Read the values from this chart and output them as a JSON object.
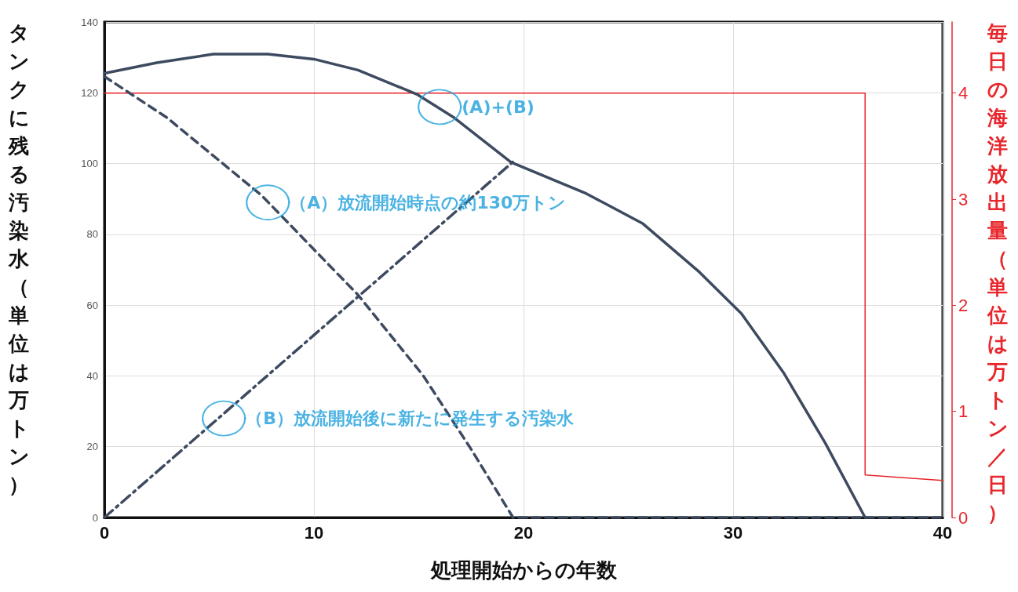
{
  "chart_data": {
    "type": "line",
    "xlabel": "処理開始からの年数",
    "ylabel": "タンクに残る汚染水（単位は万トン）",
    "y2label": "毎日の海洋放出量（単位は万トン／日）",
    "xlim": [
      0,
      40
    ],
    "xticks": [
      0,
      10,
      20,
      30,
      40
    ],
    "ylim": [
      0,
      140
    ],
    "yticks": [
      0,
      20,
      40,
      60,
      80,
      100,
      120,
      140
    ],
    "y2lim": [
      0,
      4.67
    ],
    "y2ticks": [
      0,
      1,
      2,
      3,
      4
    ],
    "grid": true,
    "marker": "none",
    "series": [
      {
        "color": "#3d4a60",
        "line_style": "solid",
        "x": [
          0,
          2.5,
          5.2,
          7.8,
          10,
          12.1,
          14.9,
          16.7,
          19.4,
          23,
          25.7,
          28.4,
          30.4,
          32.4,
          34.4,
          36.3
        ],
        "values": [
          125.5,
          128.5,
          130.9,
          130.9,
          129.5,
          126.4,
          119.6,
          112.9,
          100.4,
          91.5,
          83,
          69.3,
          57.6,
          41,
          21,
          0
        ]
      },
      {
        "color": "#3d4a60",
        "line_style": "dashed",
        "x": [
          0,
          3,
          7.5,
          12.1,
          15.2,
          17.5,
          19.5,
          40
        ],
        "values": [
          124.6,
          112.9,
          91,
          62.9,
          40.2,
          19.3,
          0,
          0
        ]
      },
      {
        "color": "#3d4a60",
        "line_style": "dashdot",
        "x": [
          0,
          19.5
        ],
        "values": [
          0,
          100.5
        ]
      },
      {
        "color": "#e8262b",
        "line_style": "solid",
        "axis": "y2",
        "x": [
          0,
          36.3,
          36.3,
          40
        ],
        "values": [
          4,
          4,
          0.4,
          0.35
        ]
      }
    ],
    "annotations": [
      {
        "text": "(A)+(B)",
        "x": 16,
        "y": 116
      },
      {
        "text": "（A）放流開始時点の約130万トン",
        "x": 7.8,
        "y": 89
      },
      {
        "text": "（B）放流開始後に新たに発生する汚染水",
        "x": 5.7,
        "y": 28
      }
    ]
  }
}
